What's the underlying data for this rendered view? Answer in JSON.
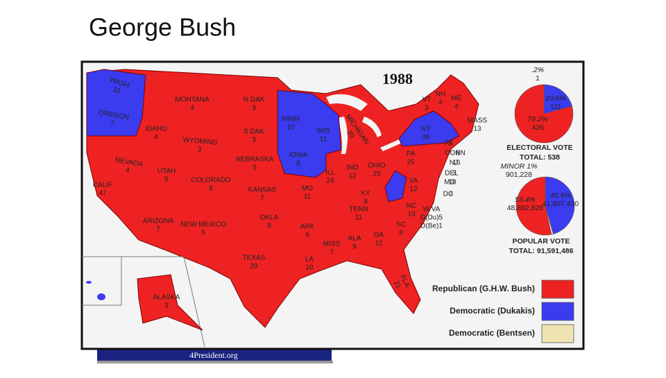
{
  "slide": {
    "title": "George Bush"
  },
  "map": {
    "year": "1988",
    "states": [
      {
        "name": "WASH",
        "votes": 10
      },
      {
        "name": "OREGON",
        "votes": 7
      },
      {
        "name": "CALIF",
        "votes": 47
      },
      {
        "name": "NEVADA",
        "votes": 4
      },
      {
        "name": "IDAHO",
        "votes": 4
      },
      {
        "name": "MONTANA",
        "votes": 4
      },
      {
        "name": "WYOMING",
        "votes": 3
      },
      {
        "name": "UTAH",
        "votes": 5
      },
      {
        "name": "COLORADO",
        "votes": 8
      },
      {
        "name": "ARIZONA",
        "votes": 7
      },
      {
        "name": "NEW MEXICO",
        "votes": 5
      },
      {
        "name": "N DAK",
        "votes": 3
      },
      {
        "name": "S DAK",
        "votes": 3
      },
      {
        "name": "NEBRASKA",
        "votes": 5
      },
      {
        "name": "KANSAS",
        "votes": 7
      },
      {
        "name": "OKLA",
        "votes": 8
      },
      {
        "name": "TEXAS",
        "votes": 29
      },
      {
        "name": "MINN",
        "votes": 10
      },
      {
        "name": "IOWA",
        "votes": 8
      },
      {
        "name": "MO",
        "votes": 11
      },
      {
        "name": "ARK",
        "votes": 6
      },
      {
        "name": "LA",
        "votes": 10
      },
      {
        "name": "WIS",
        "votes": 11
      },
      {
        "name": "ILL",
        "votes": 24
      },
      {
        "name": "MICHIGAN",
        "votes": 20
      },
      {
        "name": "IND",
        "votes": 12
      },
      {
        "name": "OHIO",
        "votes": 23
      },
      {
        "name": "KY",
        "votes": 9
      },
      {
        "name": "TENN",
        "votes": 11
      },
      {
        "name": "MISS",
        "votes": 7
      },
      {
        "name": "ALA",
        "votes": 9
      },
      {
        "name": "GA",
        "votes": 12
      },
      {
        "name": "FLA",
        "votes": 21
      },
      {
        "name": "SC",
        "votes": 8
      },
      {
        "name": "NC",
        "votes": 13
      },
      {
        "name": "VA",
        "votes": 12
      },
      {
        "name": "PA",
        "votes": 25
      },
      {
        "name": "NY",
        "votes": 36
      },
      {
        "name": "VT",
        "votes": 3
      },
      {
        "name": "NH",
        "votes": 4
      },
      {
        "name": "ME",
        "votes": 4
      },
      {
        "name": "MASS",
        "votes": 13
      },
      {
        "name": "RI",
        "votes": 4
      },
      {
        "name": "CONN",
        "votes": 8
      },
      {
        "name": "NJ",
        "votes": 16
      },
      {
        "name": "DEL",
        "votes": 3
      },
      {
        "name": "MD",
        "votes": 10
      },
      {
        "name": "DC",
        "votes": 3
      },
      {
        "name": "ALASKA",
        "votes": 3
      }
    ],
    "wv": {
      "name": "W VA",
      "lines": [
        "D(Du)5",
        "D(Be)1"
      ]
    },
    "legend": [
      {
        "label": "Republican (G.H.W. Bush)",
        "color": "#ee2222"
      },
      {
        "label": "Democratic (Dukakis)",
        "color": "#3b3bf0"
      },
      {
        "label": "Democratic (Bentsen)",
        "color": "#efe4b0"
      }
    ],
    "footer": "4President.org"
  },
  "electoral_vote": {
    "title": "ELECTORAL VOTE",
    "total": "TOTAL: 538",
    "values": [
      0.2,
      20.6,
      79.2
    ],
    "value_labels": [
      ".2%",
      "20.6%",
      "79.2%"
    ],
    "counts": [
      "1",
      "111",
      "426"
    ],
    "colors": [
      "#efe4b0",
      "#3b3bf0",
      "#ee2222"
    ]
  },
  "popular_vote": {
    "title": "POPULAR VOTE",
    "total": "TOTAL: 91,591,486",
    "values": [
      45.6,
      1,
      53.4
    ],
    "value_labels": [
      "45.6%",
      "MINOR 1%",
      "53.4%"
    ],
    "counts": [
      "41,807,430",
      "901,228",
      "48,882,828"
    ],
    "colors": [
      "#3b3bf0",
      "#efe4b0",
      "#ee2222"
    ]
  }
}
